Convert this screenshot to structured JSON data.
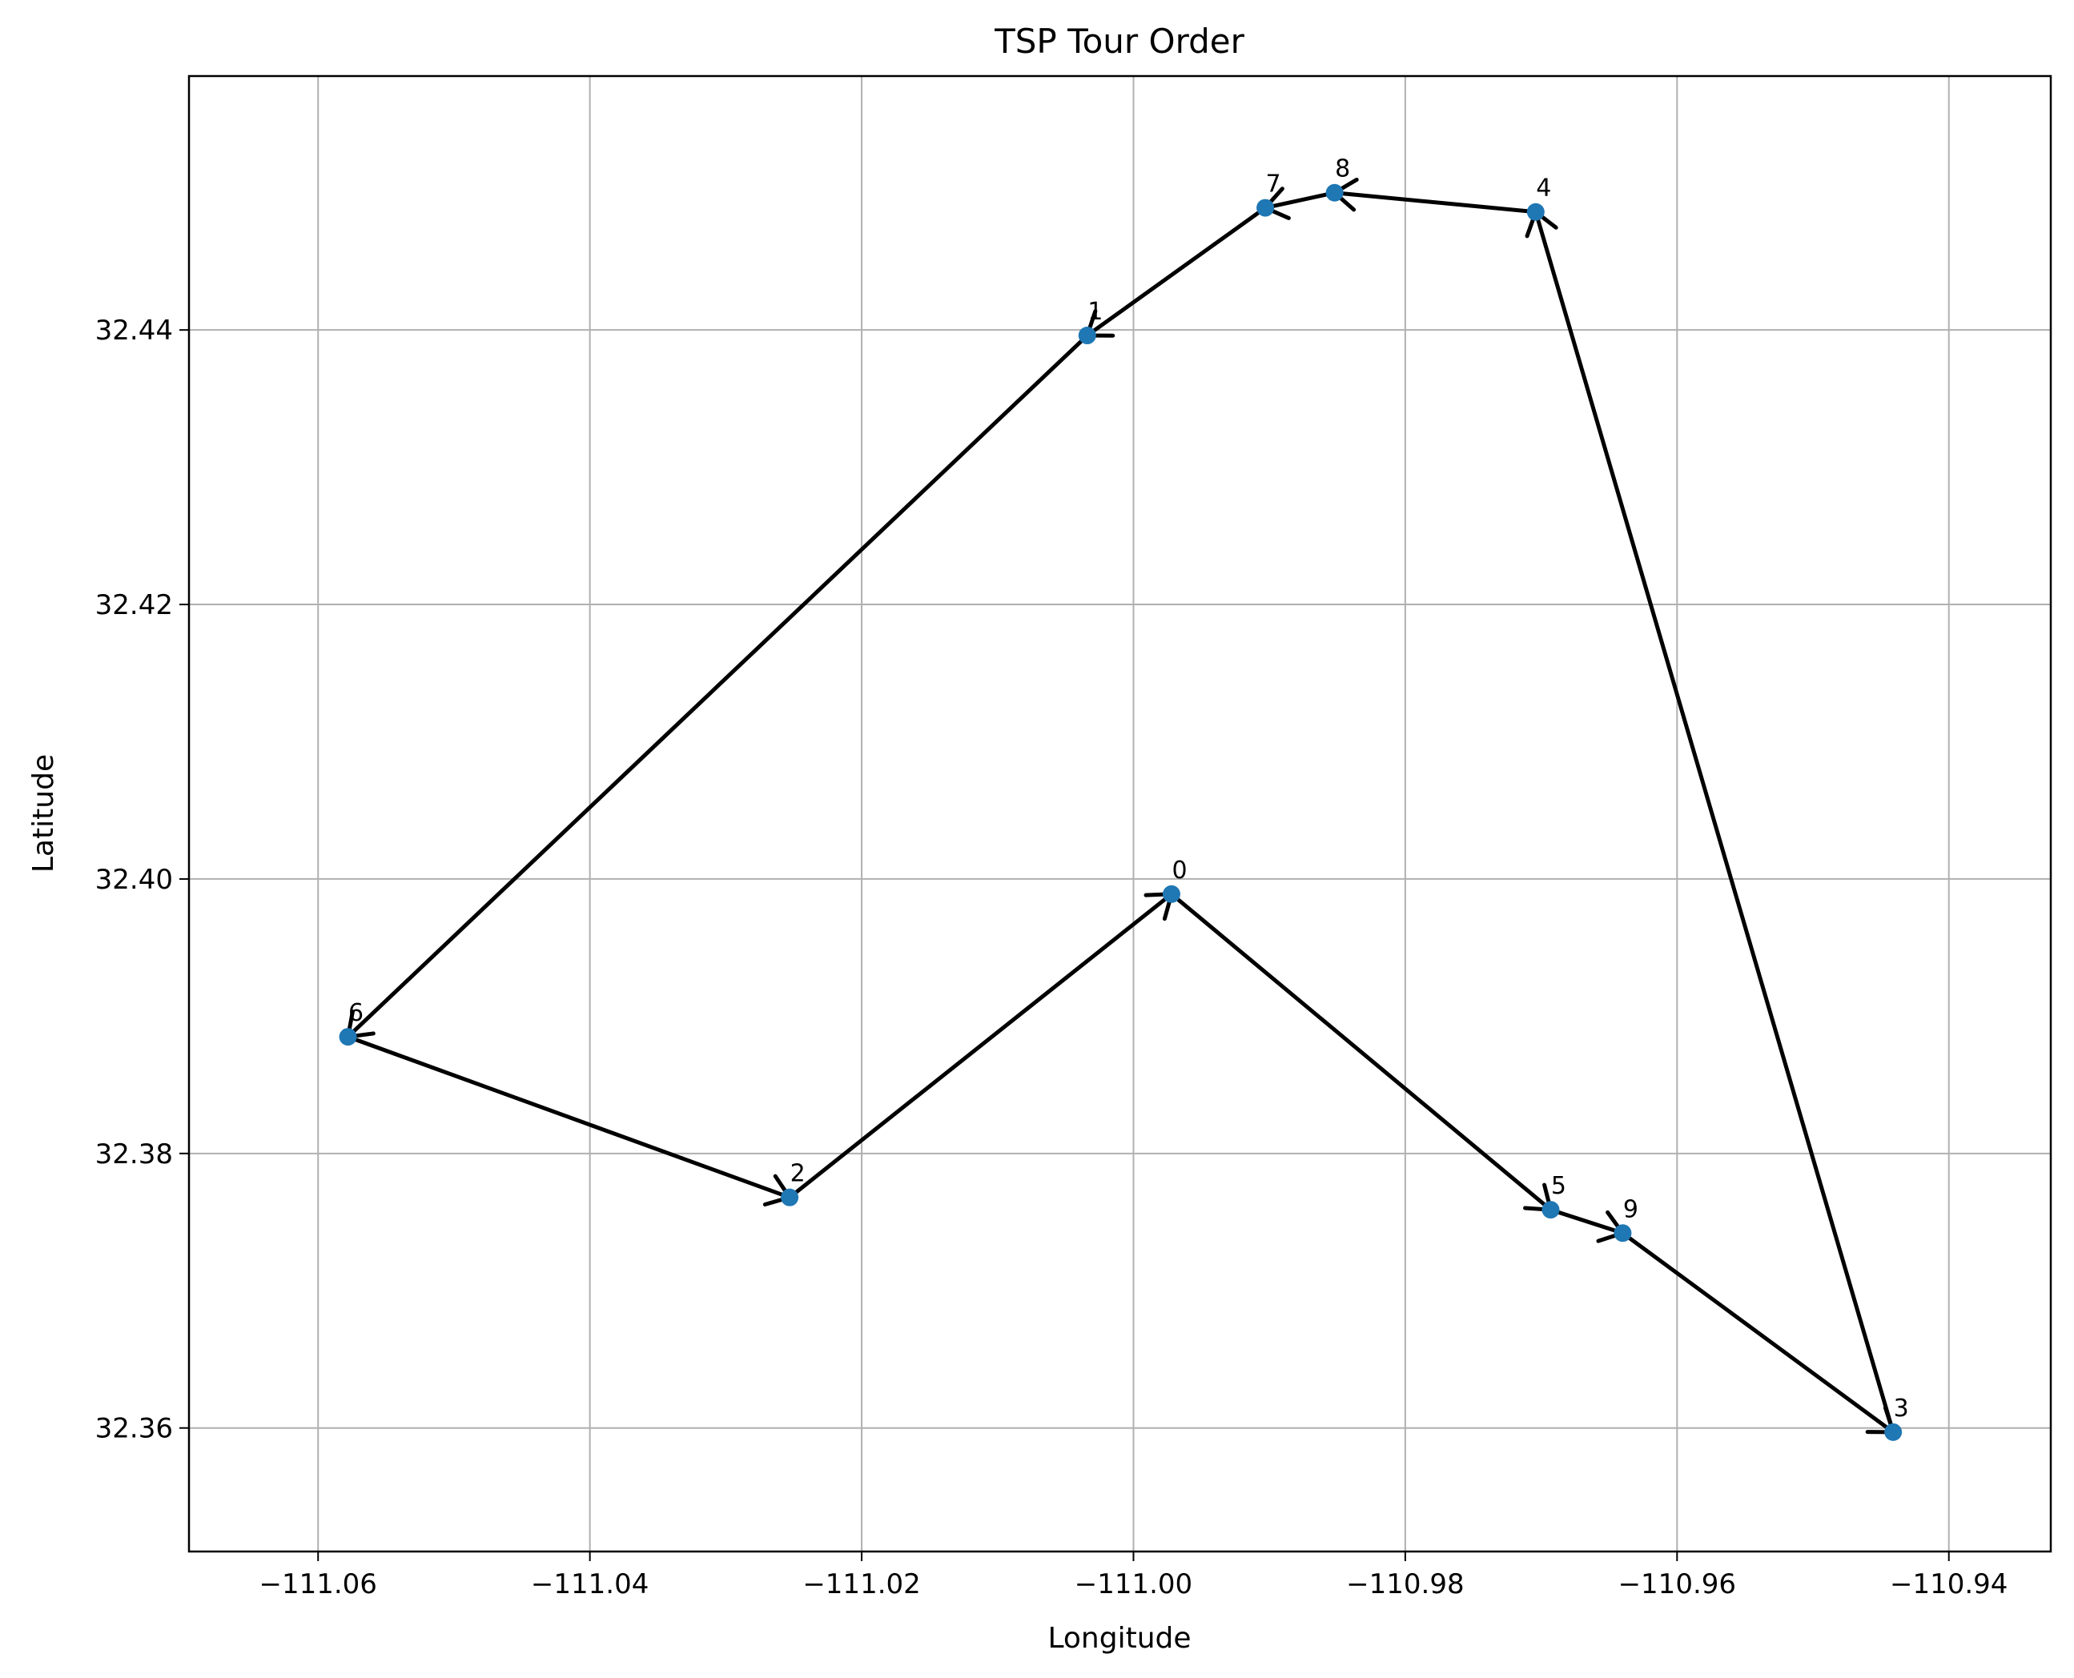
{
  "chart_data": {
    "type": "scatter",
    "title": "TSP Tour Order",
    "xlabel": "Longitude",
    "ylabel": "Latitude",
    "xlim": [
      -111.0695,
      -110.9325
    ],
    "ylim": [
      32.351,
      32.4585
    ],
    "xticks": [
      -111.06,
      -111.04,
      -111.02,
      -111.0,
      -110.98,
      -110.96,
      -110.94
    ],
    "xtick_labels": [
      "−111.06",
      "−111.04",
      "−111.02",
      "−111.00",
      "−110.98",
      "−110.96",
      "−110.94"
    ],
    "yticks": [
      32.36,
      32.38,
      32.4,
      32.42,
      32.44
    ],
    "ytick_labels": [
      "32.36",
      "32.38",
      "32.40",
      "32.42",
      "32.44"
    ],
    "grid": true,
    "point_color": "#1f77b4",
    "arrow_color": "#000000",
    "points": [
      {
        "label": "0",
        "x": -110.9972,
        "y": 32.3989
      },
      {
        "label": "1",
        "x": -111.0034,
        "y": 32.4396
      },
      {
        "label": "2",
        "x": -111.0253,
        "y": 32.3768
      },
      {
        "label": "3",
        "x": -110.9441,
        "y": 32.3597
      },
      {
        "label": "4",
        "x": -110.9704,
        "y": 32.4486
      },
      {
        "label": "5",
        "x": -110.9693,
        "y": 32.3759
      },
      {
        "label": "6",
        "x": -111.0578,
        "y": 32.3885
      },
      {
        "label": "7",
        "x": -110.9903,
        "y": 32.4489
      },
      {
        "label": "8",
        "x": -110.9852,
        "y": 32.45
      },
      {
        "label": "9",
        "x": -110.964,
        "y": 32.3742
      }
    ],
    "tour": [
      0,
      5,
      9,
      3,
      4,
      8,
      7,
      1,
      6,
      2,
      0
    ]
  }
}
